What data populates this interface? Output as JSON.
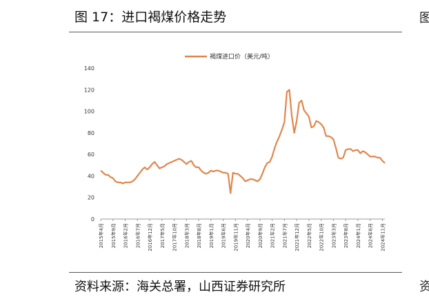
{
  "header": {
    "title": "图 17：进口褐煤价格走势",
    "edge_fragment": "图"
  },
  "footer": {
    "source": "资料来源：海关总署，山西证券研究所",
    "edge_fragment": "资"
  },
  "colors": {
    "series": "#E2854A",
    "axis": "#999999",
    "rule": "#555555"
  },
  "chart_data": {
    "type": "line",
    "legend_position": "top-center",
    "grid": false,
    "ylim": [
      0,
      140
    ],
    "yticks": [
      0,
      20,
      40,
      60,
      80,
      100,
      120,
      140
    ],
    "xticks": [
      "2015年4月",
      "2015年9月",
      "2016年2月",
      "2016年7月",
      "2016年12月",
      "2017年5月",
      "2017年10月",
      "2018年3月",
      "2018年8月",
      "2019年1月",
      "2019年6月",
      "2019年11月",
      "2020年4月",
      "2020年9月",
      "2021年2月",
      "2021年7月",
      "2021年12月",
      "2022年5月",
      "2022年10月",
      "2023年3月",
      "2023年8月",
      "2024年1月",
      "2024年6月",
      "2024年11月"
    ],
    "series": [
      {
        "name": "褐煤进口价（美元/吨）",
        "start_label": "2015年4月",
        "values": [
          45,
          43,
          41,
          41,
          39,
          38,
          35,
          34,
          34,
          33,
          34,
          34,
          34,
          35,
          37,
          40,
          43,
          46,
          48,
          46,
          48,
          51,
          53,
          50,
          47,
          48,
          49,
          51,
          52,
          53,
          54,
          55,
          56,
          55,
          53,
          51,
          53,
          54,
          50,
          48,
          48,
          45,
          43,
          42,
          43,
          45,
          44,
          45,
          45,
          44,
          43,
          43,
          42,
          24,
          43,
          42,
          42,
          40,
          38,
          35,
          36,
          37,
          37,
          36,
          35,
          37,
          42,
          48,
          52,
          53,
          58,
          66,
          72,
          77,
          83,
          90,
          118,
          120,
          96,
          80,
          91,
          108,
          110,
          101,
          98,
          95,
          85,
          86,
          91,
          90,
          88,
          85,
          77,
          77,
          76,
          74,
          66,
          57,
          56,
          57,
          64,
          65,
          65,
          63,
          64,
          64,
          61,
          63,
          62,
          60,
          58,
          58,
          58,
          57,
          57,
          54,
          52
        ]
      }
    ]
  }
}
